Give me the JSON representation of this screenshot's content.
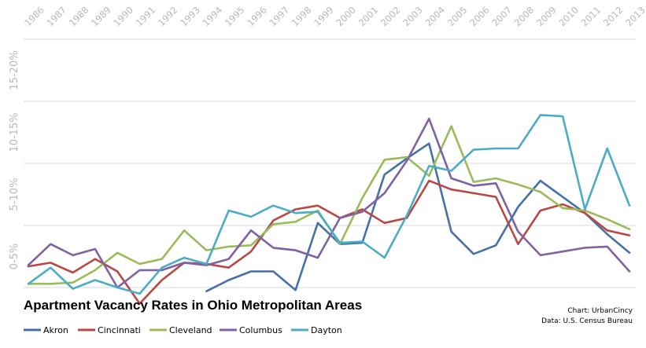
{
  "chart_data": {
    "type": "line",
    "title": "Apartment Vacancy Rates in Ohio Metropolitan Areas",
    "credits": [
      "Chart: UrbanCincy",
      "Data: U.S. Census Bureau"
    ],
    "x": [
      "1986",
      "1987",
      "1988",
      "1989",
      "1990",
      "1991",
      "1992",
      "1993",
      "1994",
      "1995",
      "1996",
      "1997",
      "1998",
      "1999",
      "2000",
      "2001",
      "2002",
      "2003",
      "2004",
      "2005",
      "2006",
      "2007",
      "2008",
      "2009",
      "2010",
      "2011",
      "2012",
      "2013"
    ],
    "y_categories": [
      "0-5%",
      "5-10%",
      "10-15%",
      "15-20%"
    ],
    "ylim": [
      0,
      20
    ],
    "grid": true,
    "legend_position": "bottom",
    "series": [
      {
        "name": "Akron",
        "color": "#4472A8",
        "values": [
          null,
          null,
          null,
          null,
          null,
          null,
          null,
          null,
          -0.3,
          0.6,
          1.3,
          1.3,
          -0.2,
          5.2,
          3.5,
          3.6,
          9.1,
          10.4,
          11.6,
          4.5,
          2.7,
          3.4,
          6.5,
          8.6,
          7.3,
          6.0,
          4.3,
          2.8
        ]
      },
      {
        "name": "Cincinnati",
        "color": "#B94746",
        "values": [
          1.7,
          2.0,
          1.2,
          2.3,
          1.3,
          -1.3,
          0.6,
          2.0,
          1.9,
          1.6,
          2.9,
          5.4,
          6.3,
          6.6,
          5.6,
          6.3,
          5.2,
          5.6,
          8.6,
          7.9,
          7.6,
          7.3,
          3.5,
          6.2,
          6.7,
          6.0,
          4.6,
          4.2
        ]
      },
      {
        "name": "Cleveland",
        "color": "#9BBB59",
        "values": [
          0.3,
          0.3,
          0.4,
          1.4,
          2.8,
          1.9,
          2.3,
          4.6,
          3.0,
          3.3,
          3.4,
          5.1,
          5.3,
          6.2,
          3.5,
          7.2,
          10.3,
          10.5,
          9.0,
          13.0,
          8.5,
          8.8,
          8.3,
          7.7,
          6.4,
          6.2,
          5.5,
          4.7
        ]
      },
      {
        "name": "Columbus",
        "color": "#7F62A2",
        "values": [
          1.8,
          3.5,
          2.6,
          3.1,
          0.0,
          1.4,
          1.4,
          2.0,
          1.8,
          2.3,
          4.6,
          3.2,
          3.0,
          2.4,
          5.6,
          6.1,
          7.6,
          10.2,
          13.6,
          8.8,
          8.2,
          8.4,
          4.5,
          2.6,
          2.9,
          3.2,
          3.3,
          1.3
        ]
      },
      {
        "name": "Dayton",
        "color": "#4BACC6",
        "values": [
          0.3,
          1.6,
          -0.1,
          0.6,
          0.0,
          -0.5,
          1.6,
          2.4,
          1.9,
          6.2,
          5.7,
          6.6,
          6.0,
          6.1,
          3.6,
          3.7,
          2.4,
          5.8,
          9.8,
          9.4,
          11.1,
          11.2,
          11.2,
          13.9,
          13.8,
          6.3,
          11.2,
          6.6
        ]
      }
    ]
  }
}
